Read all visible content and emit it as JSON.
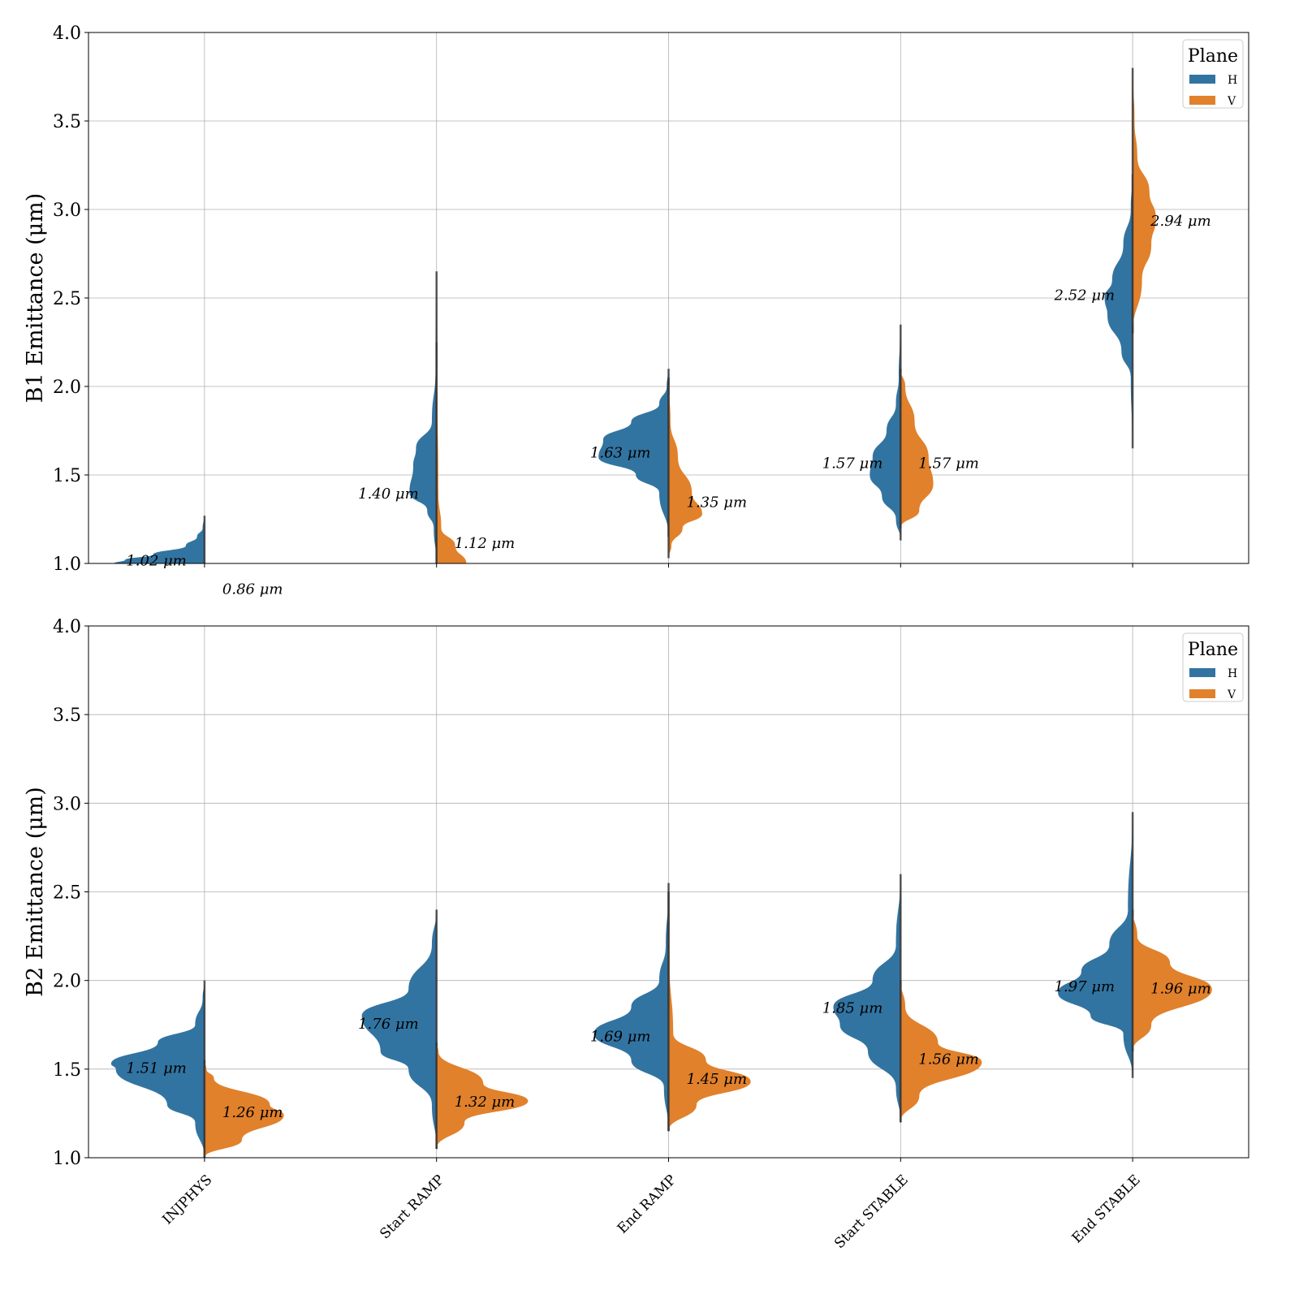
{
  "chart_data": [
    {
      "type": "violin",
      "ylabel": "B1 Emittance (μm)",
      "ylim": [
        1.0,
        4.0
      ],
      "yticks": [
        "1.0",
        "1.5",
        "2.0",
        "2.5",
        "3.0",
        "3.5",
        "4.0"
      ],
      "categories": [
        "INJPHYS",
        "Start RAMP",
        "End RAMP",
        "Start STABLE",
        "End STABLE"
      ],
      "grid": true,
      "legend": {
        "title": "Plane",
        "entries": [
          "H",
          "V"
        ],
        "placement": "top-right"
      },
      "colors": {
        "H": "#3274a1",
        "V": "#e1812c"
      },
      "violins": [
        {
          "category": "INJPHYS",
          "H": {
            "median": 1.02,
            "label": "1.02 μm",
            "profile": [
              [
                1.0,
                0.97
              ],
              [
                1.02,
                0.85
              ],
              [
                1.05,
                0.55
              ],
              [
                1.1,
                0.2
              ],
              [
                1.15,
                0.08
              ],
              [
                1.2,
                0.02
              ],
              [
                1.27,
                0
              ]
            ]
          },
          "V": {
            "median": 0.86,
            "label": "0.86 μm",
            "profile": []
          }
        },
        {
          "category": "Start RAMP",
          "H": {
            "median": 1.4,
            "label": "1.40 μm",
            "profile": [
              [
                1.0,
                0
              ],
              [
                1.2,
                0.03
              ],
              [
                1.3,
                0.1
              ],
              [
                1.4,
                0.29
              ],
              [
                1.55,
                0.25
              ],
              [
                1.65,
                0.22
              ],
              [
                1.8,
                0.05
              ],
              [
                2.1,
                0.01
              ],
              [
                2.65,
                0
              ]
            ]
          },
          "V": {
            "median": 1.12,
            "label": "1.12 μm",
            "profile": [
              [
                1.0,
                0.32
              ],
              [
                1.1,
                0.2
              ],
              [
                1.2,
                0.05
              ],
              [
                1.4,
                0.02
              ],
              [
                2.0,
                0.01
              ],
              [
                2.25,
                0
              ]
            ]
          }
        },
        {
          "category": "End RAMP",
          "H": {
            "median": 1.63,
            "label": "1.63 μm",
            "profile": [
              [
                1.15,
                0
              ],
              [
                1.4,
                0.1
              ],
              [
                1.5,
                0.35
              ],
              [
                1.6,
                0.75
              ],
              [
                1.7,
                0.7
              ],
              [
                1.8,
                0.4
              ],
              [
                1.9,
                0.1
              ],
              [
                2.0,
                0.02
              ],
              [
                2.1,
                0
              ]
            ]
          },
          "V": {
            "median": 1.35,
            "label": "1.35 μm",
            "profile": [
              [
                1.03,
                0
              ],
              [
                1.1,
                0.03
              ],
              [
                1.2,
                0.15
              ],
              [
                1.28,
                0.36
              ],
              [
                1.4,
                0.25
              ],
              [
                1.6,
                0.1
              ],
              [
                1.8,
                0.02
              ],
              [
                2.05,
                0
              ]
            ]
          }
        },
        {
          "category": "Start STABLE",
          "H": {
            "median": 1.57,
            "label": "1.57 μm",
            "profile": [
              [
                1.13,
                0
              ],
              [
                1.25,
                0.05
              ],
              [
                1.38,
                0.2
              ],
              [
                1.5,
                0.33
              ],
              [
                1.6,
                0.3
              ],
              [
                1.75,
                0.15
              ],
              [
                1.9,
                0.05
              ],
              [
                2.05,
                0.02
              ],
              [
                2.35,
                0
              ]
            ]
          },
          "V": {
            "median": 1.57,
            "label": "1.57 μm",
            "profile": [
              [
                1.2,
                0
              ],
              [
                1.3,
                0.2
              ],
              [
                1.45,
                0.35
              ],
              [
                1.6,
                0.3
              ],
              [
                1.8,
                0.15
              ],
              [
                2.0,
                0.05
              ],
              [
                2.1,
                0
              ]
            ]
          }
        },
        {
          "category": "End STABLE",
          "H": {
            "median": 2.52,
            "label": "2.52 μm",
            "profile": [
              [
                1.65,
                0
              ],
              [
                2.05,
                0.02
              ],
              [
                2.2,
                0.12
              ],
              [
                2.4,
                0.27
              ],
              [
                2.5,
                0.3
              ],
              [
                2.6,
                0.22
              ],
              [
                2.8,
                0.1
              ],
              [
                3.0,
                0.02
              ],
              [
                3.2,
                0
              ]
            ]
          },
          "V": {
            "median": 2.94,
            "label": "2.94 μm",
            "profile": [
              [
                2.3,
                0
              ],
              [
                2.6,
                0.1
              ],
              [
                2.8,
                0.2
              ],
              [
                2.95,
                0.25
              ],
              [
                3.1,
                0.18
              ],
              [
                3.3,
                0.05
              ],
              [
                3.5,
                0.02
              ],
              [
                3.8,
                0
              ]
            ]
          }
        }
      ]
    },
    {
      "type": "violin",
      "ylabel": "B2 Emittance (μm)",
      "ylim": [
        1.0,
        4.0
      ],
      "yticks": [
        "1.0",
        "1.5",
        "2.0",
        "2.5",
        "3.0",
        "3.5",
        "4.0"
      ],
      "categories": [
        "INJPHYS",
        "Start RAMP",
        "End RAMP",
        "Start STABLE",
        "End STABLE"
      ],
      "grid": true,
      "legend": {
        "title": "Plane",
        "entries": [
          "H",
          "V"
        ],
        "placement": "top-right"
      },
      "colors": {
        "H": "#3274a1",
        "V": "#e1812c"
      },
      "violins": [
        {
          "category": "INJPHYS",
          "H": {
            "median": 1.51,
            "label": "1.51 μm",
            "profile": [
              [
                1.0,
                0
              ],
              [
                1.2,
                0.1
              ],
              [
                1.3,
                0.4
              ],
              [
                1.5,
                0.95
              ],
              [
                1.53,
                1.0
              ],
              [
                1.65,
                0.5
              ],
              [
                1.75,
                0.1
              ],
              [
                1.9,
                0.02
              ],
              [
                2.0,
                0
              ]
            ]
          },
          "V": {
            "median": 1.26,
            "label": "1.26 μm",
            "profile": [
              [
                1.0,
                0
              ],
              [
                1.1,
                0.4
              ],
              [
                1.24,
                0.85
              ],
              [
                1.3,
                0.7
              ],
              [
                1.45,
                0.1
              ],
              [
                1.5,
                0.02
              ],
              [
                1.55,
                0
              ]
            ]
          }
        },
        {
          "category": "Start RAMP",
          "H": {
            "median": 1.76,
            "label": "1.76 μm",
            "profile": [
              [
                1.05,
                0
              ],
              [
                1.3,
                0.05
              ],
              [
                1.5,
                0.3
              ],
              [
                1.6,
                0.6
              ],
              [
                1.8,
                0.8
              ],
              [
                1.95,
                0.3
              ],
              [
                2.2,
                0.05
              ],
              [
                2.4,
                0
              ]
            ]
          },
          "V": {
            "median": 1.32,
            "label": "1.32 μm",
            "profile": [
              [
                1.05,
                0
              ],
              [
                1.2,
                0.3
              ],
              [
                1.32,
                0.98
              ],
              [
                1.42,
                0.5
              ],
              [
                1.6,
                0.02
              ],
              [
                1.65,
                0
              ]
            ]
          }
        },
        {
          "category": "End RAMP",
          "H": {
            "median": 1.69,
            "label": "1.69 μm",
            "profile": [
              [
                1.15,
                0
              ],
              [
                1.4,
                0.05
              ],
              [
                1.55,
                0.4
              ],
              [
                1.7,
                0.8
              ],
              [
                1.85,
                0.4
              ],
              [
                2.0,
                0.1
              ],
              [
                2.2,
                0.03
              ],
              [
                2.5,
                0
              ]
            ]
          },
          "V": {
            "median": 1.45,
            "label": "1.45 μm",
            "profile": [
              [
                1.15,
                0
              ],
              [
                1.3,
                0.3
              ],
              [
                1.43,
                0.88
              ],
              [
                1.55,
                0.4
              ],
              [
                1.7,
                0.05
              ],
              [
                2.1,
                0.01
              ],
              [
                2.55,
                0
              ]
            ]
          }
        },
        {
          "category": "Start STABLE",
          "H": {
            "median": 1.85,
            "label": "1.85 μm",
            "profile": [
              [
                1.2,
                0
              ],
              [
                1.4,
                0.05
              ],
              [
                1.6,
                0.35
              ],
              [
                1.75,
                0.65
              ],
              [
                1.85,
                0.72
              ],
              [
                2.0,
                0.3
              ],
              [
                2.2,
                0.05
              ],
              [
                2.6,
                0
              ]
            ]
          },
          "V": {
            "median": 1.56,
            "label": "1.56 μm",
            "profile": [
              [
                1.2,
                0
              ],
              [
                1.35,
                0.2
              ],
              [
                1.54,
                0.87
              ],
              [
                1.65,
                0.4
              ],
              [
                1.85,
                0.05
              ],
              [
                2.0,
                0
              ]
            ]
          }
        },
        {
          "category": "End STABLE",
          "H": {
            "median": 1.97,
            "label": "1.97 μm",
            "profile": [
              [
                1.45,
                0
              ],
              [
                1.7,
                0.1
              ],
              [
                1.8,
                0.45
              ],
              [
                1.93,
                0.8
              ],
              [
                2.05,
                0.55
              ],
              [
                2.2,
                0.25
              ],
              [
                2.4,
                0.05
              ],
              [
                2.95,
                0
              ]
            ]
          },
          "V": {
            "median": 1.96,
            "label": "1.96 μm",
            "profile": [
              [
                1.6,
                0
              ],
              [
                1.75,
                0.2
              ],
              [
                1.95,
                0.85
              ],
              [
                2.1,
                0.4
              ],
              [
                2.25,
                0.05
              ],
              [
                2.4,
                0
              ]
            ]
          }
        }
      ]
    }
  ]
}
